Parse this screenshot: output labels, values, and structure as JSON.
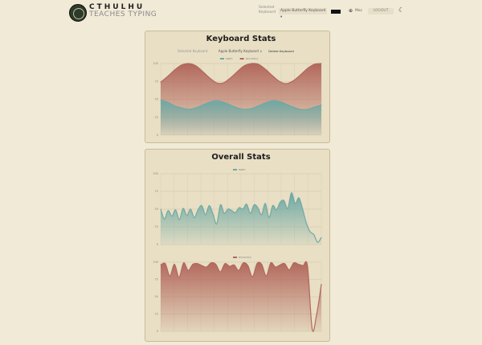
{
  "header": {
    "brand_line1": "CTHULHU",
    "brand_line2": "TEACHES TYPING",
    "selected_keyboard_label": "Selected Keyboard",
    "keyboard_select_value": "Apple Butterfly Keyboard ▾",
    "language": "Mac",
    "logout_label": "LOGOUT"
  },
  "keyboard_panel": {
    "title": "Keyboard Stats",
    "selected_label": "Selected Keyboard",
    "keyboard_value": "Apple Butterfly Keyboard ∨",
    "delete_label": "Delete Keyboard"
  },
  "overall_panel": {
    "title": "Overall Stats"
  },
  "colors": {
    "wpm": "#6fa9a4",
    "accuracy": "#b2685c",
    "background": "#f1ead7",
    "panel": "#e8dfc5"
  },
  "chart_data": [
    {
      "type": "area",
      "yticks": [
        "100",
        "75",
        "50",
        "25",
        "0"
      ],
      "ylim": [
        0,
        100
      ],
      "grid": true,
      "legend": "top-center",
      "series": [
        {
          "name": "wpm",
          "color": "#6fa9a4",
          "values": [
            49,
            46,
            41,
            38,
            36,
            38,
            42,
            46,
            48,
            46,
            42,
            38,
            36,
            37,
            41,
            45,
            48,
            47,
            43,
            39,
            36,
            36,
            39,
            42
          ]
        },
        {
          "name": "accuracy",
          "color": "#b2685c",
          "values": [
            74,
            82,
            91,
            98,
            100,
            97,
            89,
            80,
            73,
            73,
            80,
            89,
            97,
            100,
            99,
            92,
            83,
            75,
            72,
            76,
            84,
            93,
            99,
            100
          ]
        }
      ]
    },
    {
      "type": "area",
      "yticks": [
        "100",
        "75",
        "50",
        "25",
        "0"
      ],
      "ylim": [
        0,
        100
      ],
      "grid": true,
      "legend": "top-center",
      "series": [
        {
          "name": "wpm",
          "color": "#6fa9a4",
          "values": [
            50,
            36,
            48,
            40,
            49,
            35,
            51,
            41,
            50,
            38,
            49,
            55,
            42,
            55,
            43,
            29,
            56,
            44,
            50,
            48,
            45,
            52,
            50,
            57,
            44,
            56,
            52,
            42,
            58,
            38,
            55,
            49,
            60,
            62,
            51,
            73,
            58,
            66,
            50,
            30,
            18,
            14,
            3,
            10
          ]
        }
      ]
    },
    {
      "type": "area",
      "yticks": [
        "100",
        "75",
        "50",
        "25",
        "0"
      ],
      "ylim": [
        0,
        100
      ],
      "grid": true,
      "legend": "top-center",
      "series": [
        {
          "name": "accuracy",
          "color": "#b2685c",
          "values": [
            96,
            98,
            80,
            97,
            78,
            99,
            88,
            97,
            98,
            95,
            93,
            99,
            97,
            86,
            98,
            94,
            96,
            88,
            99,
            95,
            79,
            98,
            97,
            80,
            99,
            93,
            96,
            98,
            89,
            99,
            97,
            95,
            94,
            3,
            25,
            68
          ]
        }
      ]
    }
  ]
}
